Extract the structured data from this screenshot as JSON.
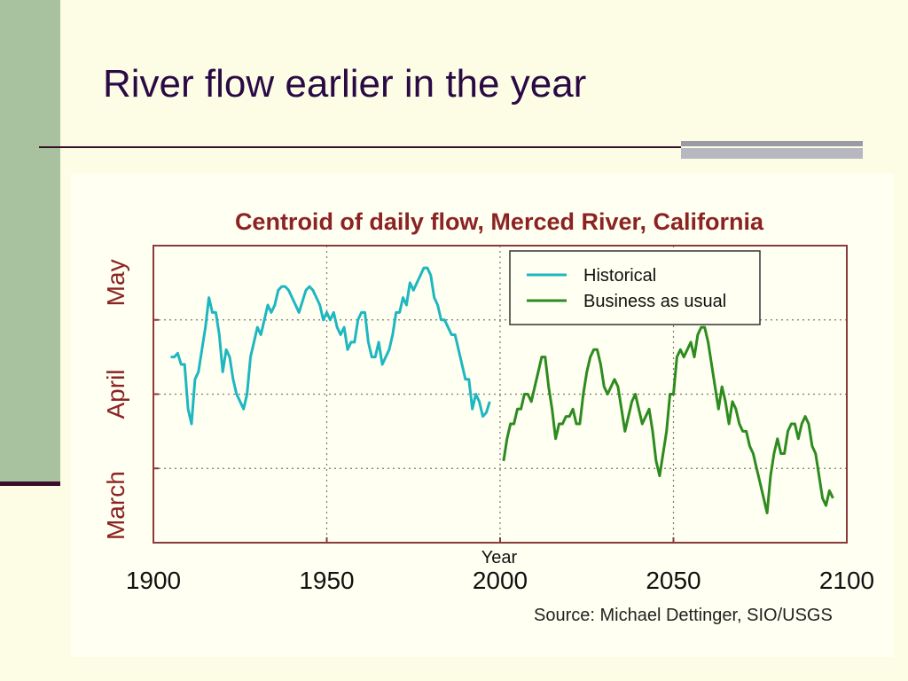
{
  "slide": {
    "title": "River flow earlier in the year",
    "source": "Source: Michael Dettinger, SIO/USGS"
  },
  "colors": {
    "sidebar": "#a8c2a0",
    "title_text": "#2a0a45",
    "frame": "#8b3a3a",
    "historical": "#1eb7c0",
    "business_as_usual": "#2e8b1f"
  },
  "chart_data": {
    "type": "line",
    "title": "Centroid of daily flow, Merced River, California",
    "xlabel": "Year",
    "ylabel": "",
    "xlim": [
      1900,
      2100
    ],
    "ylim": [
      0,
      4
    ],
    "x_ticks": [
      1900,
      1950,
      2000,
      2050,
      2100
    ],
    "y_ticks": [
      {
        "value": 0.5,
        "label": "March"
      },
      {
        "value": 2,
        "label": "April"
      },
      {
        "value": 3.5,
        "label": "May"
      }
    ],
    "grid": true,
    "legend_position": "top-right",
    "series": [
      {
        "name": "Historical",
        "color": "#1eb7c0",
        "points": [
          [
            1905,
            2.5
          ],
          [
            1906,
            2.5
          ],
          [
            1907,
            2.55
          ],
          [
            1908,
            2.4
          ],
          [
            1909,
            2.4
          ],
          [
            1910,
            1.8
          ],
          [
            1911,
            1.6
          ],
          [
            1912,
            2.2
          ],
          [
            1913,
            2.3
          ],
          [
            1914,
            2.6
          ],
          [
            1915,
            2.9
          ],
          [
            1916,
            3.3
          ],
          [
            1917,
            3.1
          ],
          [
            1918,
            3.1
          ],
          [
            1919,
            2.8
          ],
          [
            1920,
            2.3
          ],
          [
            1921,
            2.6
          ],
          [
            1922,
            2.5
          ],
          [
            1923,
            2.2
          ],
          [
            1924,
            2.0
          ],
          [
            1925,
            1.9
          ],
          [
            1926,
            1.8
          ],
          [
            1927,
            2.0
          ],
          [
            1928,
            2.5
          ],
          [
            1929,
            2.7
          ],
          [
            1930,
            2.9
          ],
          [
            1931,
            2.8
          ],
          [
            1932,
            3.0
          ],
          [
            1933,
            3.2
          ],
          [
            1934,
            3.1
          ],
          [
            1935,
            3.2
          ],
          [
            1936,
            3.4
          ],
          [
            1937,
            3.45
          ],
          [
            1938,
            3.45
          ],
          [
            1939,
            3.4
          ],
          [
            1940,
            3.3
          ],
          [
            1941,
            3.2
          ],
          [
            1942,
            3.1
          ],
          [
            1943,
            3.25
          ],
          [
            1944,
            3.4
          ],
          [
            1945,
            3.45
          ],
          [
            1946,
            3.4
          ],
          [
            1947,
            3.3
          ],
          [
            1948,
            3.2
          ],
          [
            1949,
            3.0
          ],
          [
            1950,
            3.1
          ],
          [
            1951,
            3.0
          ],
          [
            1952,
            3.1
          ],
          [
            1953,
            2.9
          ],
          [
            1954,
            2.8
          ],
          [
            1955,
            2.9
          ],
          [
            1956,
            2.6
          ],
          [
            1957,
            2.7
          ],
          [
            1958,
            2.7
          ],
          [
            1959,
            3.0
          ],
          [
            1960,
            3.1
          ],
          [
            1961,
            3.1
          ],
          [
            1962,
            2.7
          ],
          [
            1963,
            2.5
          ],
          [
            1964,
            2.5
          ],
          [
            1965,
            2.7
          ],
          [
            1966,
            2.4
          ],
          [
            1967,
            2.5
          ],
          [
            1968,
            2.6
          ],
          [
            1969,
            2.8
          ],
          [
            1970,
            3.1
          ],
          [
            1971,
            3.1
          ],
          [
            1972,
            3.3
          ],
          [
            1973,
            3.2
          ],
          [
            1974,
            3.5
          ],
          [
            1975,
            3.4
          ],
          [
            1976,
            3.5
          ],
          [
            1977,
            3.6
          ],
          [
            1978,
            3.7
          ],
          [
            1979,
            3.7
          ],
          [
            1980,
            3.6
          ],
          [
            1981,
            3.3
          ],
          [
            1982,
            3.2
          ],
          [
            1983,
            3.0
          ],
          [
            1984,
            3.0
          ],
          [
            1985,
            2.9
          ],
          [
            1986,
            2.8
          ],
          [
            1987,
            2.8
          ],
          [
            1988,
            2.6
          ],
          [
            1989,
            2.4
          ],
          [
            1990,
            2.2
          ],
          [
            1991,
            2.2
          ],
          [
            1992,
            1.8
          ],
          [
            1993,
            2.0
          ],
          [
            1994,
            1.9
          ],
          [
            1995,
            1.7
          ],
          [
            1996,
            1.75
          ],
          [
            1997,
            1.9
          ]
        ]
      },
      {
        "name": "Business as usual",
        "color": "#2e8b1f",
        "points": [
          [
            2001,
            1.1
          ],
          [
            2002,
            1.4
          ],
          [
            2003,
            1.6
          ],
          [
            2004,
            1.6
          ],
          [
            2005,
            1.8
          ],
          [
            2006,
            1.8
          ],
          [
            2007,
            2.0
          ],
          [
            2008,
            2.0
          ],
          [
            2009,
            1.9
          ],
          [
            2010,
            2.1
          ],
          [
            2011,
            2.3
          ],
          [
            2012,
            2.5
          ],
          [
            2013,
            2.5
          ],
          [
            2014,
            2.1
          ],
          [
            2015,
            1.8
          ],
          [
            2016,
            1.4
          ],
          [
            2017,
            1.6
          ],
          [
            2018,
            1.6
          ],
          [
            2019,
            1.7
          ],
          [
            2020,
            1.7
          ],
          [
            2021,
            1.8
          ],
          [
            2022,
            1.6
          ],
          [
            2023,
            1.6
          ],
          [
            2024,
            2.0
          ],
          [
            2025,
            2.3
          ],
          [
            2026,
            2.5
          ],
          [
            2027,
            2.6
          ],
          [
            2028,
            2.6
          ],
          [
            2029,
            2.4
          ],
          [
            2030,
            2.1
          ],
          [
            2031,
            2.0
          ],
          [
            2032,
            2.1
          ],
          [
            2033,
            2.2
          ],
          [
            2034,
            2.1
          ],
          [
            2035,
            1.8
          ],
          [
            2036,
            1.5
          ],
          [
            2037,
            1.7
          ],
          [
            2038,
            1.9
          ],
          [
            2039,
            2.0
          ],
          [
            2040,
            1.8
          ],
          [
            2041,
            1.6
          ],
          [
            2042,
            1.7
          ],
          [
            2043,
            1.8
          ],
          [
            2044,
            1.5
          ],
          [
            2045,
            1.1
          ],
          [
            2046,
            0.9
          ],
          [
            2047,
            1.2
          ],
          [
            2048,
            1.5
          ],
          [
            2049,
            2.0
          ],
          [
            2050,
            2.0
          ],
          [
            2051,
            2.5
          ],
          [
            2052,
            2.6
          ],
          [
            2053,
            2.5
          ],
          [
            2054,
            2.6
          ],
          [
            2055,
            2.7
          ],
          [
            2056,
            2.5
          ],
          [
            2057,
            2.8
          ],
          [
            2058,
            2.9
          ],
          [
            2059,
            2.9
          ],
          [
            2060,
            2.7
          ],
          [
            2061,
            2.4
          ],
          [
            2062,
            2.1
          ],
          [
            2063,
            1.8
          ],
          [
            2064,
            2.1
          ],
          [
            2065,
            1.9
          ],
          [
            2066,
            1.6
          ],
          [
            2067,
            1.9
          ],
          [
            2068,
            1.8
          ],
          [
            2069,
            1.6
          ],
          [
            2070,
            1.5
          ],
          [
            2071,
            1.5
          ],
          [
            2072,
            1.3
          ],
          [
            2073,
            1.2
          ],
          [
            2074,
            1.0
          ],
          [
            2075,
            0.8
          ],
          [
            2076,
            0.6
          ],
          [
            2077,
            0.4
          ],
          [
            2078,
            0.9
          ],
          [
            2079,
            1.2
          ],
          [
            2080,
            1.4
          ],
          [
            2081,
            1.2
          ],
          [
            2082,
            1.2
          ],
          [
            2083,
            1.5
          ],
          [
            2084,
            1.6
          ],
          [
            2085,
            1.6
          ],
          [
            2086,
            1.4
          ],
          [
            2087,
            1.6
          ],
          [
            2088,
            1.7
          ],
          [
            2089,
            1.6
          ],
          [
            2090,
            1.3
          ],
          [
            2091,
            1.2
          ],
          [
            2092,
            0.9
          ],
          [
            2093,
            0.6
          ],
          [
            2094,
            0.5
          ],
          [
            2095,
            0.7
          ],
          [
            2096,
            0.6
          ]
        ]
      }
    ]
  }
}
